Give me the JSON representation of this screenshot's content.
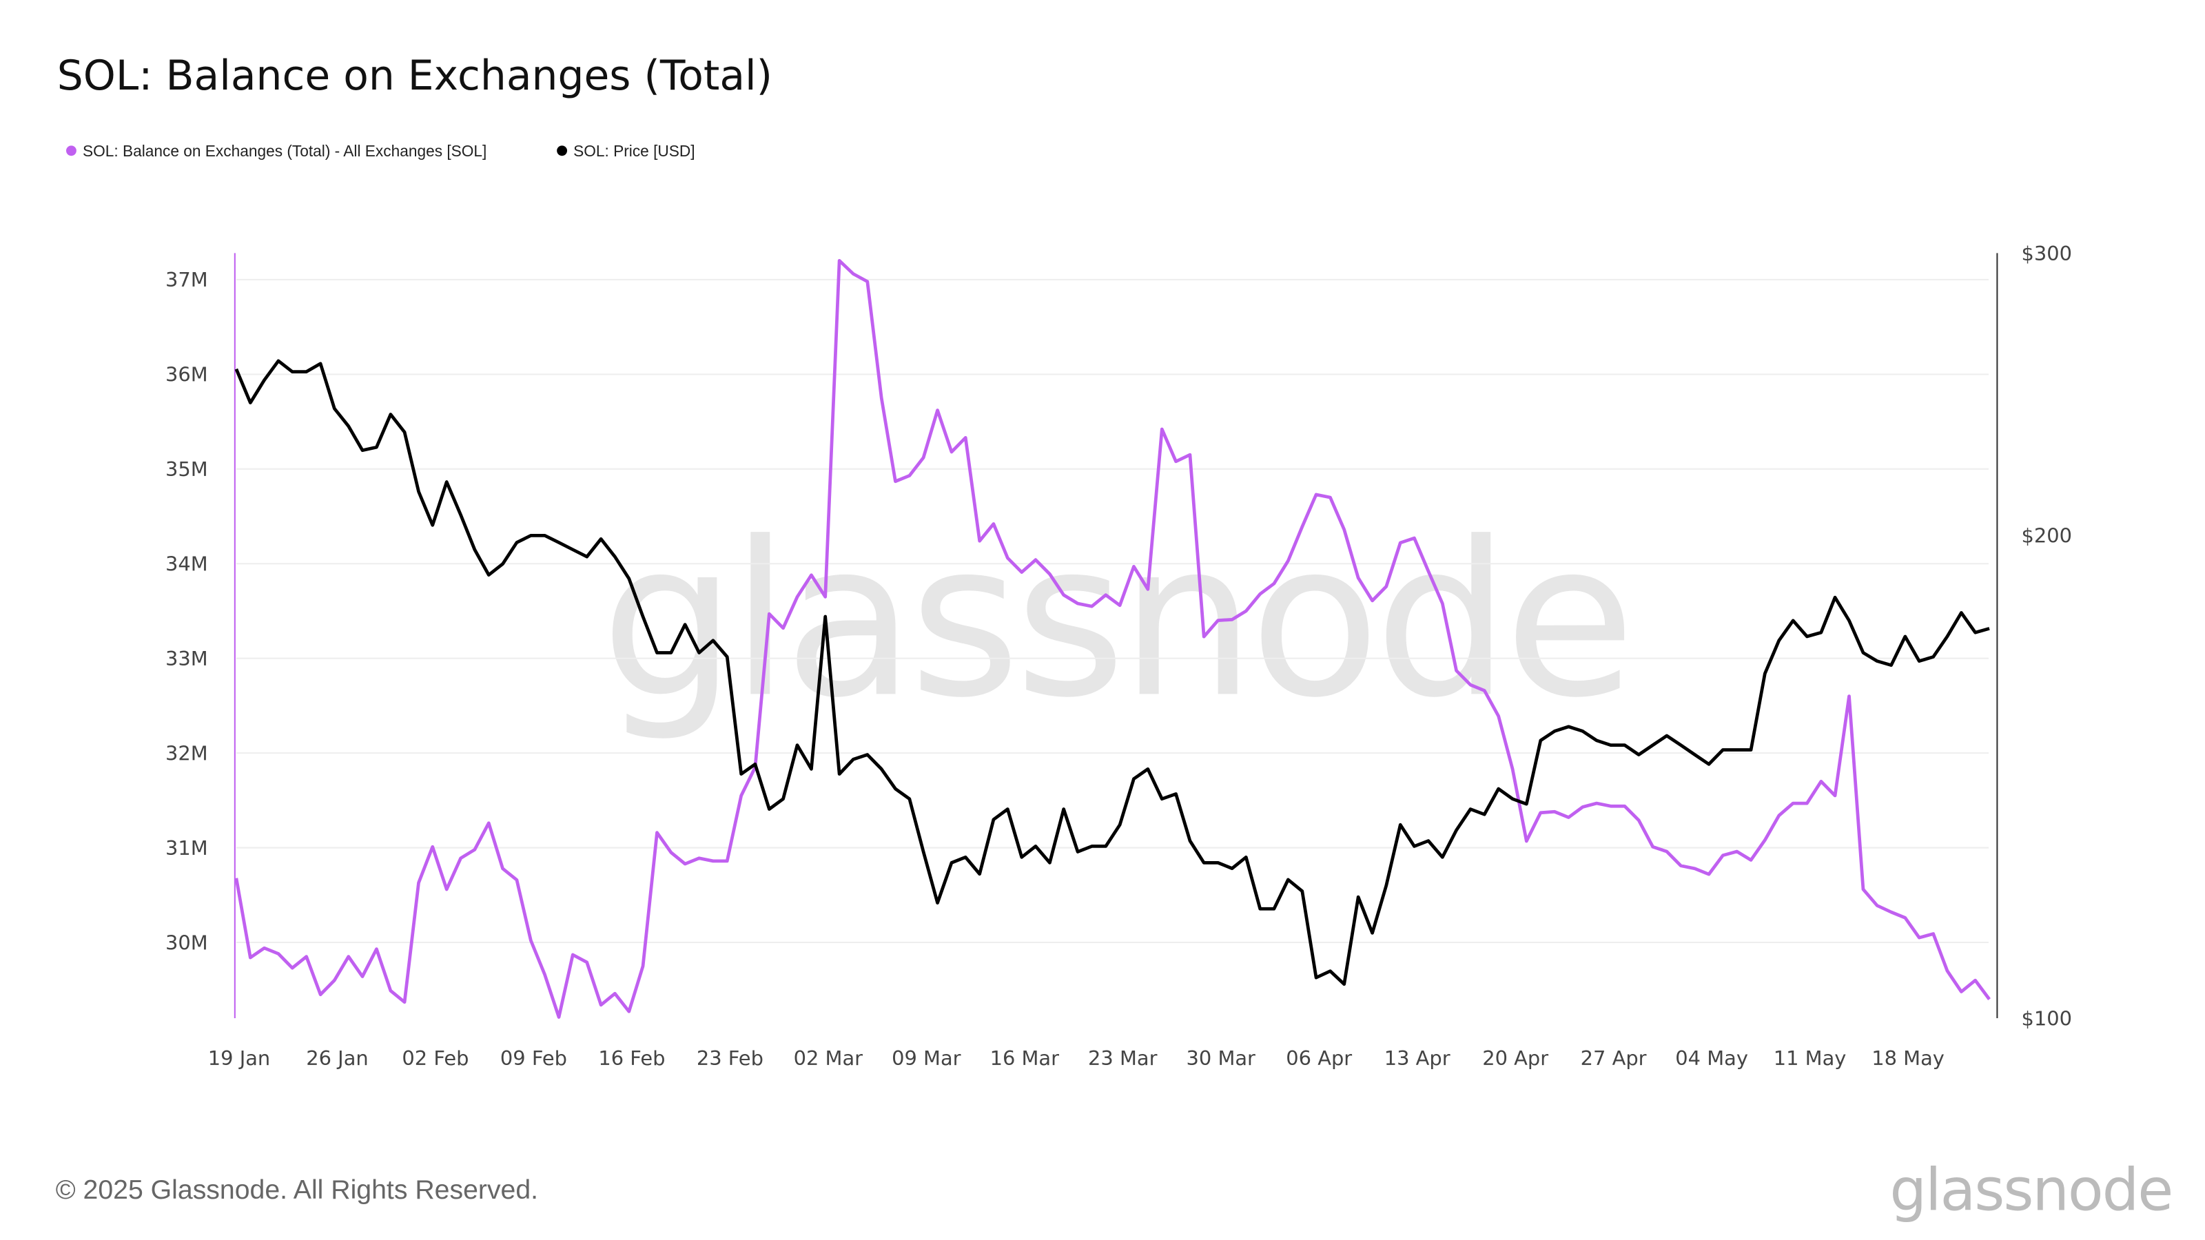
{
  "title": "SOL: Balance on Exchanges (Total)",
  "footer": "© 2025 Glassnode. All Rights Reserved.",
  "brand": "glassnode",
  "colors": {
    "balance": "#c060f0",
    "price": "#000000",
    "grid": "#eeeeee"
  },
  "chart_data": {
    "type": "line",
    "title": "SOL: Balance on Exchanges (Total)",
    "x_start": "2025-01-19",
    "x_end": "2025-05-24",
    "x_step": "1 day",
    "x_ticks": [
      "19 Jan",
      "26 Jan",
      "02 Feb",
      "09 Feb",
      "16 Feb",
      "23 Feb",
      "02 Mar",
      "09 Mar",
      "16 Mar",
      "23 Mar",
      "30 Mar",
      "06 Apr",
      "13 Apr",
      "20 Apr",
      "27 Apr",
      "04 May",
      "11 May",
      "18 May"
    ],
    "y_left": {
      "label": "SOL: Balance on Exchanges (Total) - All Exchanges [SOL]",
      "ticks": [
        "37M",
        "36M",
        "35M",
        "34M",
        "33M",
        "32M",
        "31M",
        "30M"
      ],
      "tick_values": [
        37,
        36,
        35,
        34,
        33,
        32,
        31,
        30
      ],
      "range": [
        29.2,
        37.28
      ],
      "unit": "M SOL",
      "scale": "linear"
    },
    "y_right": {
      "label": "SOL: Price [USD]",
      "ticks": [
        "$300",
        "$200",
        "$100"
      ],
      "tick_values": [
        300,
        200,
        100
      ],
      "range": [
        100,
        300
      ],
      "scale": "log"
    },
    "legend": {
      "placement": "top-left",
      "entries": [
        "SOL: Balance on Exchanges (Total) - All Exchanges [SOL]",
        "SOL: Price [USD]"
      ]
    },
    "series": [
      {
        "name": "SOL: Balance on Exchanges (Total) - All Exchanges [SOL]",
        "axis": "left",
        "values": [
          30.68,
          29.84,
          29.94,
          29.88,
          29.73,
          29.85,
          29.45,
          29.6,
          29.85,
          29.64,
          29.93,
          29.49,
          29.37,
          30.63,
          31.01,
          30.56,
          30.89,
          30.98,
          31.26,
          30.78,
          30.66,
          30.02,
          29.66,
          29.21,
          29.87,
          29.79,
          29.34,
          29.46,
          29.27,
          29.75,
          31.16,
          30.95,
          30.83,
          30.89,
          30.86,
          30.86,
          31.55,
          31.85,
          33.47,
          33.32,
          33.65,
          33.88,
          33.65,
          37.2,
          37.06,
          36.98,
          35.75,
          34.87,
          34.93,
          35.12,
          35.62,
          35.18,
          35.33,
          34.24,
          34.42,
          34.06,
          33.91,
          34.04,
          33.89,
          33.67,
          33.58,
          33.55,
          33.67,
          33.56,
          33.97,
          33.73,
          35.42,
          35.08,
          35.15,
          33.23,
          33.4,
          33.41,
          33.5,
          33.68,
          33.79,
          34.03,
          34.39,
          34.73,
          34.7,
          34.36,
          33.85,
          33.61,
          33.76,
          34.22,
          34.27,
          33.92,
          33.58,
          32.87,
          32.72,
          32.66,
          32.39,
          31.83,
          31.07,
          31.37,
          31.38,
          31.32,
          31.43,
          31.47,
          31.44,
          31.44,
          31.29,
          31.01,
          30.96,
          30.81,
          30.78,
          30.72,
          30.92,
          30.96,
          30.87,
          31.08,
          31.34,
          31.47,
          31.47,
          31.7,
          31.55,
          32.6,
          30.56,
          30.39,
          30.32,
          30.26,
          30.05,
          30.09,
          29.7,
          29.48,
          29.6,
          29.4
        ]
      },
      {
        "name": "SOL: Price [USD]",
        "axis": "right",
        "values": [
          254,
          242,
          250,
          257,
          253,
          253,
          256,
          240,
          234,
          226,
          227,
          238,
          232,
          213,
          203,
          216,
          206,
          196,
          189,
          192,
          198,
          200,
          200,
          198,
          196,
          194,
          199,
          194,
          188,
          178,
          169,
          169,
          176,
          169,
          172,
          168,
          142,
          144,
          135,
          137,
          148,
          143,
          178,
          142,
          145,
          146,
          143,
          139,
          137,
          127,
          118,
          125,
          126,
          123,
          133,
          135,
          126,
          128,
          125,
          135,
          127,
          128,
          128,
          132,
          141,
          143,
          137,
          138,
          129,
          125,
          125,
          124,
          126,
          117,
          117,
          122,
          120,
          106,
          107,
          105,
          119,
          113,
          121,
          132,
          128,
          129,
          126,
          131,
          135,
          134,
          139,
          137,
          136,
          149,
          151,
          152,
          151,
          149,
          148,
          148,
          146,
          148,
          150,
          148,
          146,
          144,
          147,
          147,
          147,
          164,
          172,
          177,
          173,
          174,
          183,
          177,
          169,
          167,
          166,
          173,
          167,
          168,
          173,
          179,
          174,
          175
        ]
      }
    ]
  }
}
